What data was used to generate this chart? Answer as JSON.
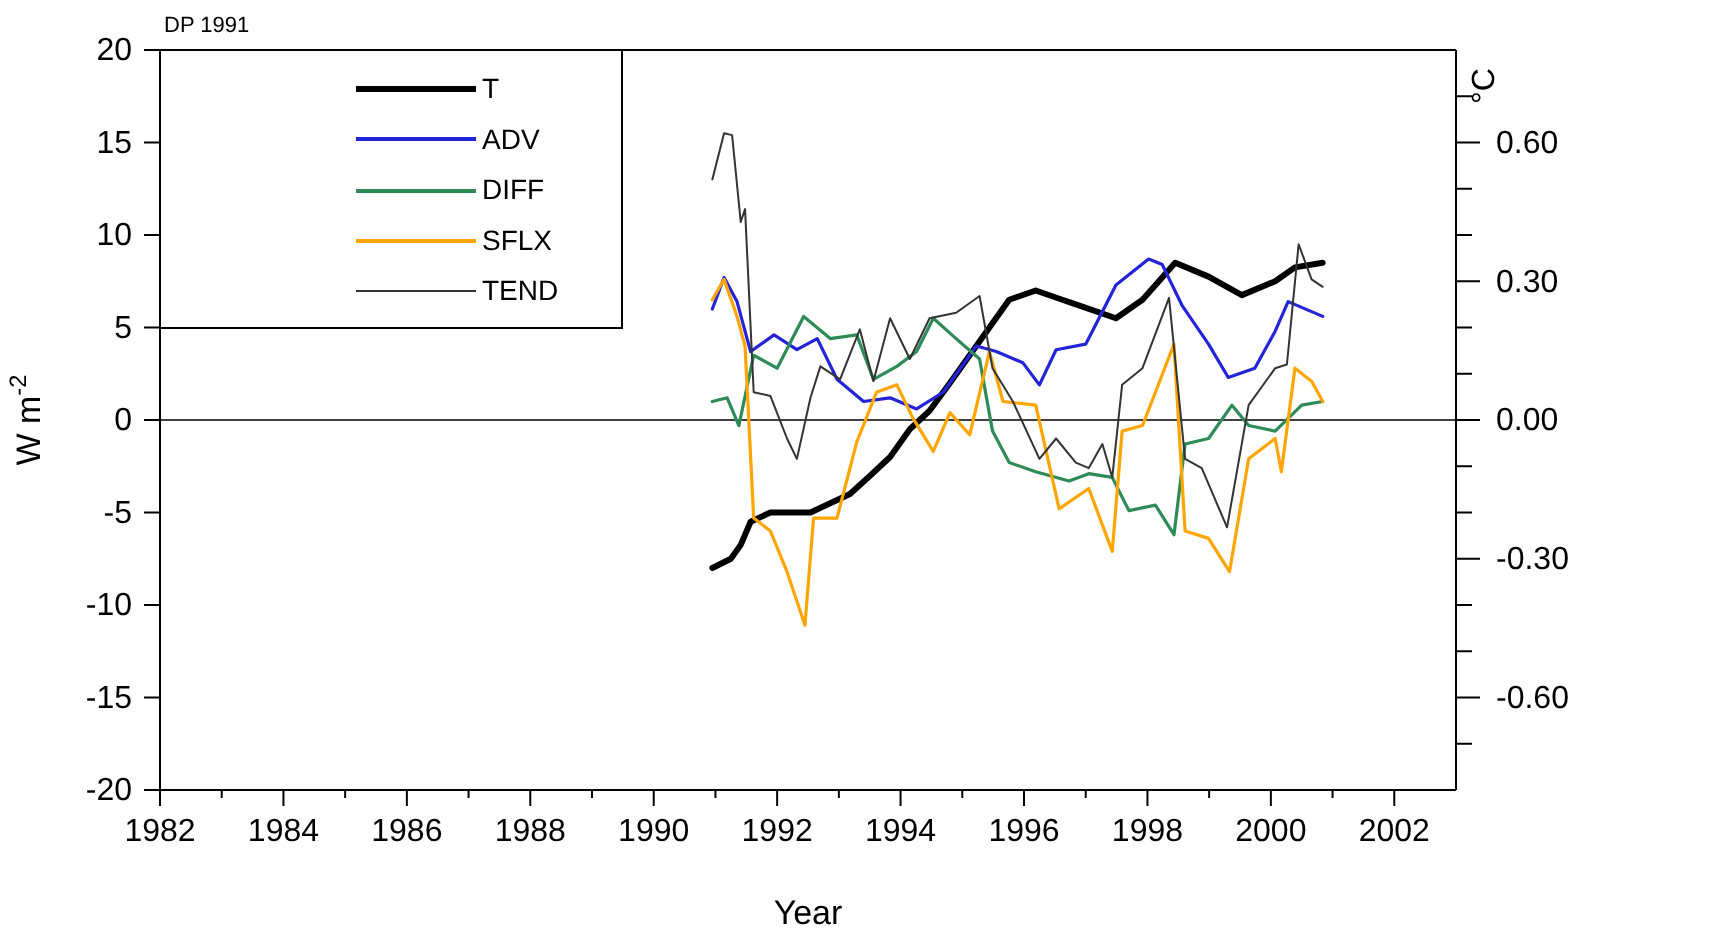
{
  "chart_data": {
    "type": "line",
    "title": "DP 1991",
    "xlabel": "Year",
    "ylabel": "W m$^{-2}$",
    "y2label": "°C",
    "xlim": [
      1982,
      2003
    ],
    "xticks": [
      1982,
      {
        "value": 1983,
        "label": null
      },
      1984,
      {
        "value": 1985,
        "label": null
      },
      1986,
      {
        "value": 1987,
        "label": null
      },
      1988,
      {
        "value": 1989,
        "label": null
      },
      1990,
      {
        "value": 1991,
        "label": null
      },
      1992,
      {
        "value": 1993,
        "label": null
      },
      1994,
      {
        "value": 1995,
        "label": null
      },
      1996,
      {
        "value": 1997,
        "label": null
      },
      1998,
      {
        "value": 1999,
        "label": null
      },
      2000,
      {
        "value": 2001,
        "label": null
      },
      2002
    ],
    "ylim": [
      -20,
      20
    ],
    "yticks": [
      -20,
      -15,
      -10,
      -5,
      0,
      5,
      10,
      15,
      20
    ],
    "y2lim": [
      -0.8,
      0.8
    ],
    "y2ticks": [
      {
        "value": -0.7,
        "label": null
      },
      {
        "value": -0.6,
        "label": "-0.60"
      },
      {
        "value": -0.5,
        "label": null
      },
      {
        "value": -0.4,
        "label": null
      },
      {
        "value": -0.3,
        "label": "-0.30"
      },
      {
        "value": -0.2,
        "label": null
      },
      {
        "value": -0.1,
        "label": null
      },
      {
        "value": 0,
        "label": "0.00"
      },
      {
        "value": 0.1,
        "label": null
      },
      {
        "value": 0.2,
        "label": null
      },
      {
        "value": 0.3,
        "label": "0.30"
      },
      {
        "value": 0.4,
        "label": null
      },
      {
        "value": 0.5,
        "label": null
      },
      {
        "value": 0.6,
        "label": "0.60"
      },
      {
        "value": 0.7,
        "label": null
      }
    ],
    "ref_lines": [
      {
        "axis": "y",
        "value": 0,
        "color": "#000000"
      }
    ],
    "legend": "top left",
    "grid": false,
    "marker": "none",
    "line_style": "solid",
    "series": [
      {
        "name": "T",
        "color": "#000000",
        "axis": "y2",
        "x": [
          1990.95,
          1991.25,
          1991.41,
          1991.57,
          1991.89,
          1992.21,
          1992.54,
          1992.86,
          1993.18,
          1993.51,
          1993.83,
          1994.15,
          1994.47,
          1994.8,
          1995.12,
          1995.44,
          1995.76,
          1996.19,
          1996.62,
          1996.84,
          1997.49,
          1997.92,
          1998.45,
          1998.99,
          1999.53,
          2000.07,
          2000.39,
          2000.84
        ],
        "values": [
          -0.32,
          -0.3,
          -0.27,
          -0.22,
          -0.2,
          -0.2,
          -0.2,
          -0.18,
          -0.16,
          -0.12,
          -0.08,
          -0.02,
          0.02,
          0.08,
          0.14,
          0.2,
          0.26,
          0.28,
          0.26,
          0.25,
          0.22,
          0.26,
          0.34,
          0.31,
          0.27,
          0.3,
          0.33,
          0.34
        ]
      },
      {
        "name": "ADV",
        "color": "#2323d8",
        "x": [
          1990.95,
          1991.14,
          1991.35,
          1991.57,
          1991.95,
          1992.32,
          1992.65,
          1992.97,
          1993.4,
          1993.83,
          1994.26,
          1994.69,
          1995.23,
          1995.55,
          1995.98,
          1996.25,
          1996.52,
          1997.0,
          1997.49,
          1998.02,
          1998.24,
          1998.56,
          1998.99,
          1999.31,
          1999.74,
          2000.07,
          2000.28,
          2000.84
        ],
        "values": [
          6.0,
          7.7,
          6.4,
          3.7,
          4.6,
          3.8,
          4.4,
          2.2,
          1.0,
          1.2,
          0.6,
          1.5,
          4.0,
          3.7,
          3.1,
          1.9,
          3.8,
          4.1,
          7.3,
          8.7,
          8.4,
          6.2,
          4.1,
          2.3,
          2.8,
          4.8,
          6.4,
          5.6
        ]
      },
      {
        "name": "DIFF",
        "color": "#2e8b57",
        "x": [
          1990.95,
          1991.19,
          1991.38,
          1991.62,
          1992.0,
          1992.43,
          1992.86,
          1993.29,
          1993.56,
          1993.94,
          1994.26,
          1994.53,
          1994.9,
          1995.28,
          1995.49,
          1995.76,
          1996.19,
          1996.73,
          1997.05,
          1997.43,
          1997.7,
          1998.13,
          1998.43,
          1998.61,
          1998.99,
          1999.37,
          1999.64,
          2000.07,
          2000.5,
          2000.84
        ],
        "values": [
          1.0,
          1.2,
          -0.3,
          3.5,
          2.8,
          5.6,
          4.4,
          4.6,
          2.2,
          2.9,
          3.7,
          5.5,
          4.4,
          3.3,
          -0.6,
          -2.3,
          -2.8,
          -3.3,
          -2.9,
          -3.1,
          -4.9,
          -4.6,
          -6.2,
          -1.3,
          -1.0,
          0.8,
          -0.3,
          -0.6,
          0.8,
          1.0
        ]
      },
      {
        "name": "SFLX",
        "color": "#ffa500",
        "x": [
          1990.95,
          1991.14,
          1991.35,
          1991.48,
          1991.62,
          1991.89,
          1992.16,
          1992.45,
          1992.59,
          1992.97,
          1993.29,
          1993.61,
          1993.94,
          1994.2,
          1994.53,
          1994.8,
          1995.12,
          1995.44,
          1995.66,
          1996.19,
          1996.57,
          1997.05,
          1997.43,
          1997.59,
          1997.92,
          1998.13,
          1998.43,
          1998.61,
          1998.99,
          1999.33,
          1999.64,
          2000.07,
          2000.17,
          2000.39,
          2000.66,
          2000.84
        ],
        "values": [
          6.5,
          7.6,
          5.6,
          4.0,
          -5.3,
          -6.0,
          -8.2,
          -11.1,
          -5.3,
          -5.3,
          -1.2,
          1.5,
          1.9,
          0.1,
          -1.7,
          0.4,
          -0.8,
          3.7,
          1.0,
          0.8,
          -4.8,
          -3.7,
          -7.1,
          -0.6,
          -0.3,
          1.5,
          4.1,
          -6.0,
          -6.4,
          -8.2,
          -2.1,
          -1.0,
          -2.8,
          2.8,
          2.1,
          1.0
        ]
      },
      {
        "name": "TEND",
        "color": "#333333",
        "x": [
          1990.95,
          1991.14,
          1991.27,
          1991.41,
          1991.48,
          1991.62,
          1991.89,
          1992.16,
          1992.32,
          1992.54,
          1992.7,
          1993.02,
          1993.34,
          1993.56,
          1993.83,
          1994.15,
          1994.47,
          1994.9,
          1995.28,
          1995.49,
          1995.82,
          1996.25,
          1996.52,
          1996.84,
          1997.05,
          1997.27,
          1997.43,
          1997.59,
          1997.92,
          1998.35,
          1998.61,
          1998.88,
          1999.29,
          1999.64,
          2000.07,
          2000.26,
          2000.45,
          2000.66,
          2000.84
        ],
        "values": [
          13.0,
          15.5,
          15.4,
          10.7,
          11.4,
          1.5,
          1.3,
          -1.0,
          -2.1,
          1.2,
          2.9,
          2.2,
          4.9,
          2.1,
          5.5,
          3.3,
          5.5,
          5.8,
          6.7,
          2.8,
          1.0,
          -2.1,
          -1.0,
          -2.3,
          -2.6,
          -1.3,
          -3.1,
          1.9,
          2.8,
          6.6,
          -2.1,
          -2.6,
          -5.8,
          0.8,
          2.8,
          3.0,
          9.5,
          7.6,
          7.2
        ]
      }
    ]
  }
}
